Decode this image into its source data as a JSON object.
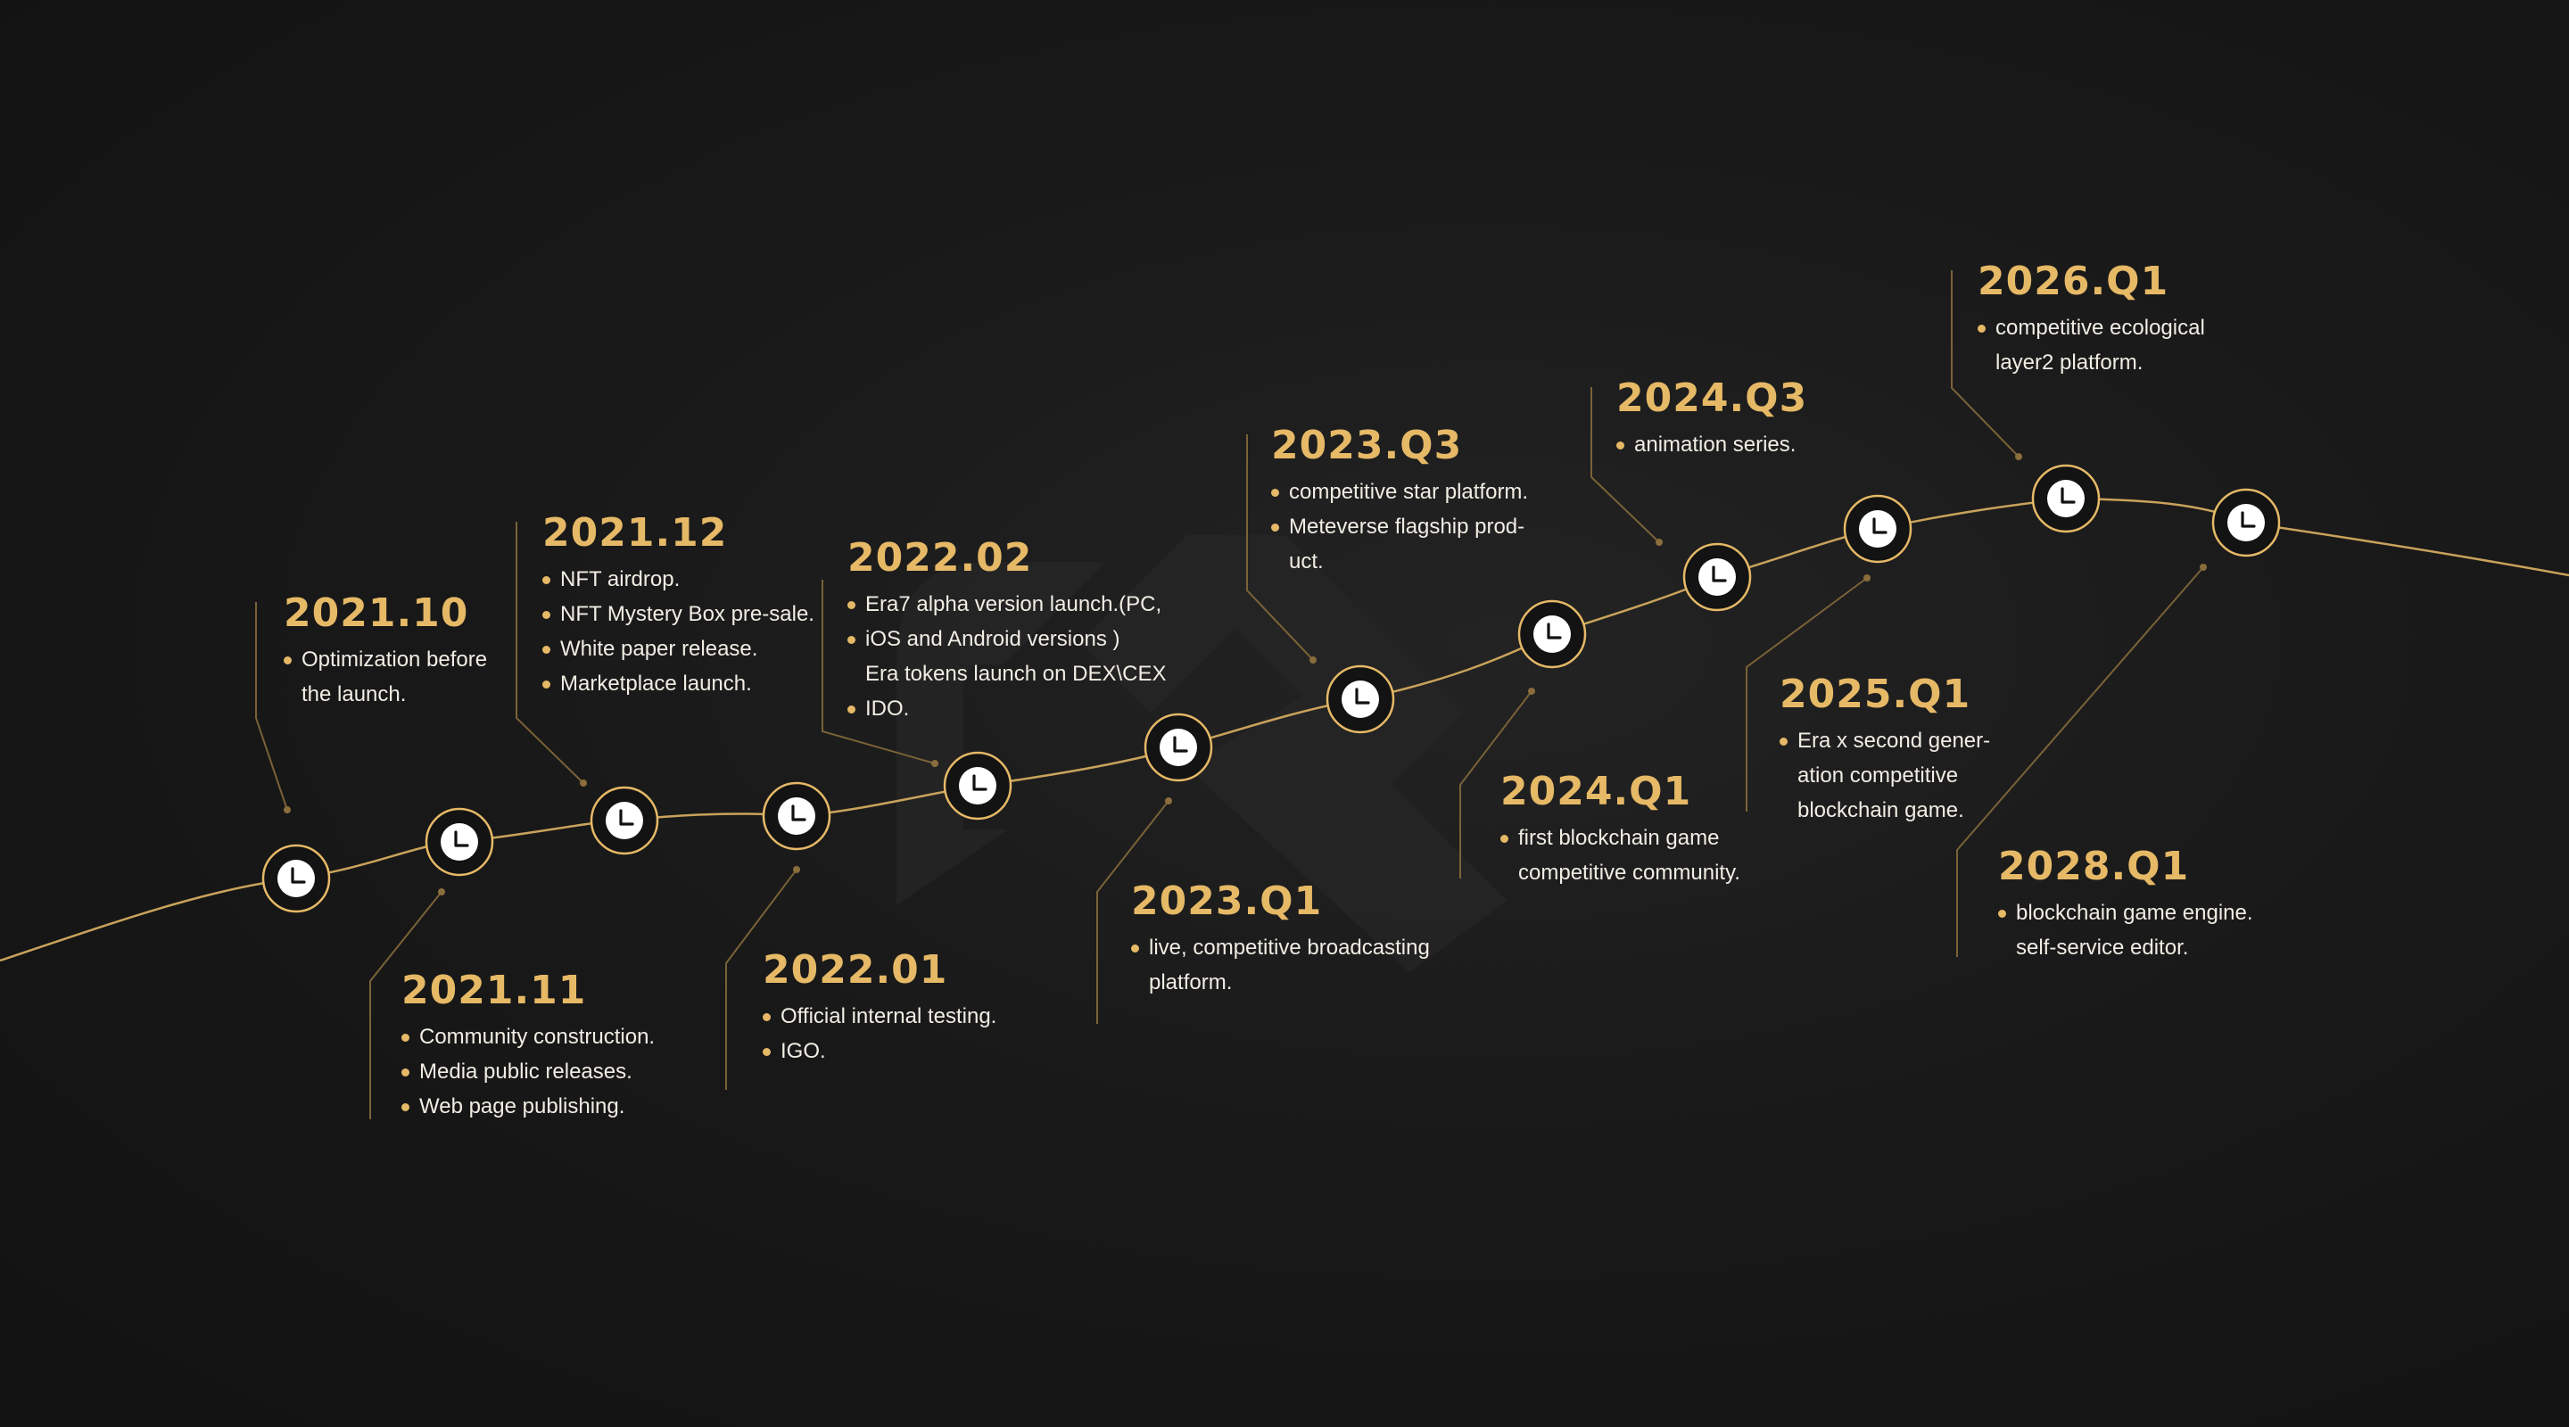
{
  "colors": {
    "accent": "#e6b967",
    "text": "#f1ede4",
    "background": "#161616"
  },
  "node_icon": "clock-icon",
  "milestones": [
    {
      "id": "2021-10",
      "date": "2021.10",
      "items": [
        {
          "text": "Optimization before",
          "bullet": true
        },
        {
          "text": "the launch.",
          "bullet": false
        }
      ]
    },
    {
      "id": "2021-11",
      "date": "2021.11",
      "items": [
        {
          "text": "Community construction.",
          "bullet": true
        },
        {
          "text": "Media public releases.",
          "bullet": true
        },
        {
          "text": "Web page publishing.",
          "bullet": true
        }
      ]
    },
    {
      "id": "2021-12",
      "date": "2021.12",
      "items": [
        {
          "text": "NFT airdrop.",
          "bullet": true
        },
        {
          "text": "NFT Mystery Box pre-sale.",
          "bullet": true
        },
        {
          "text": "White paper release.",
          "bullet": true
        },
        {
          "text": "Marketplace launch.",
          "bullet": true
        }
      ]
    },
    {
      "id": "2022-01",
      "date": "2022.01",
      "items": [
        {
          "text": "Official internal testing.",
          "bullet": true
        },
        {
          "text": "IGO.",
          "bullet": true
        }
      ]
    },
    {
      "id": "2022-02",
      "date": "2022.02",
      "items": [
        {
          "text": "Era7 alpha version launch.(PC,",
          "bullet": true
        },
        {
          "text": "iOS and Android versions )",
          "bullet": true
        },
        {
          "text": "Era tokens launch on DEX\\CEX",
          "bullet": false
        },
        {
          "text": "IDO.",
          "bullet": true
        }
      ]
    },
    {
      "id": "2023-q1",
      "date": "2023.Q1",
      "items": [
        {
          "text": "live, competitive broadcasting",
          "bullet": true
        },
        {
          "text": "platform.",
          "bullet": false
        }
      ]
    },
    {
      "id": "2023-q3",
      "date": "2023.Q3",
      "items": [
        {
          "text": "competitive star platform.",
          "bullet": true
        },
        {
          "text": "Meteverse flagship prod-",
          "bullet": true
        },
        {
          "text": "uct.",
          "bullet": false
        }
      ]
    },
    {
      "id": "2024-q1",
      "date": "2024.Q1",
      "items": [
        {
          "text": "first blockchain game",
          "bullet": true
        },
        {
          "text": "competitive community.",
          "bullet": false
        }
      ]
    },
    {
      "id": "2024-q3",
      "date": "2024.Q3",
      "items": [
        {
          "text": "animation series.",
          "bullet": true
        }
      ]
    },
    {
      "id": "2025-q1",
      "date": "2025.Q1",
      "items": [
        {
          "text": "Era x second gener-",
          "bullet": true
        },
        {
          "text": "ation competitive",
          "bullet": false
        },
        {
          "text": "blockchain game.",
          "bullet": false
        }
      ]
    },
    {
      "id": "2026-q1",
      "date": "2026.Q1",
      "items": [
        {
          "text": "competitive ecological",
          "bullet": true
        },
        {
          "text": "layer2 platform.",
          "bullet": false
        }
      ]
    },
    {
      "id": "2028-q1",
      "date": "2028.Q1",
      "items": [
        {
          "text": "blockchain game engine.",
          "bullet": true
        },
        {
          "text": "self-service editor.",
          "bullet": false
        }
      ]
    }
  ]
}
